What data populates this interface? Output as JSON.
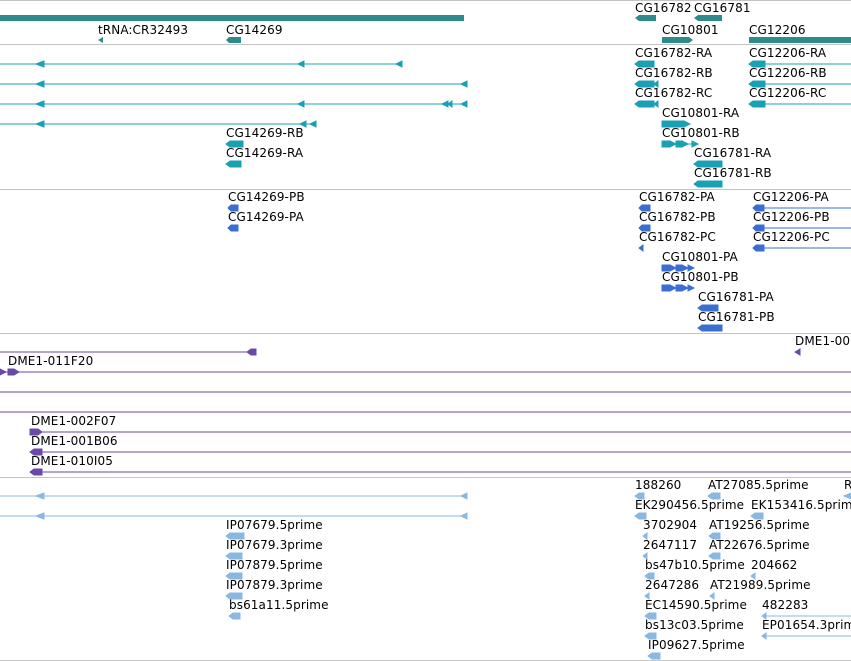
{
  "colors": {
    "gene": "#2e8b8b",
    "transcript": "#1aa0b5",
    "protein": "#3a6fcf",
    "clone": "#6a4aa8",
    "est": "#8ab8e0",
    "separator": "#c4c4c4"
  },
  "tracks": {
    "genes": {
      "labels": [
        "tRNA:CR32493",
        "CG14269",
        "CG16782",
        "CG16781",
        "CG10801",
        "CG12206"
      ]
    },
    "transcripts": {
      "labels": [
        "CG14269-RB",
        "CG14269-RA",
        "CG16782-RA",
        "CG16782-RB",
        "CG16782-RC",
        "CG10801-RA",
        "CG10801-RB",
        "CG16781-RA",
        "CG16781-RB",
        "CG12206-RA",
        "CG12206-RB",
        "CG12206-RC"
      ]
    },
    "proteins": {
      "labels": [
        "CG14269-PB",
        "CG14269-PA",
        "CG16782-PA",
        "CG16782-PB",
        "CG16782-PC",
        "CG10801-PA",
        "CG10801-PB",
        "CG16781-PA",
        "CG16781-PB",
        "CG12206-PA",
        "CG12206-PB",
        "CG12206-PC"
      ]
    },
    "clones": {
      "labels": [
        "DME1-00",
        "DME1-011F20",
        "DME1-002F07",
        "DME1-001B06",
        "DME1-010I05"
      ]
    },
    "ests": {
      "labels": [
        "IP07679.5prime",
        "IP07679.3prime",
        "IP07879.5prime",
        "IP07879.3prime",
        "bs61a11.5prime",
        "188260",
        "AT27085.5prime",
        "R",
        "EK290456.5prime",
        "EK153416.5prime",
        "3702904",
        "AT19256.5prime",
        "2647117",
        "AT22676.5prime",
        "bs47b10.5prime",
        "204662",
        "2647286",
        "AT21989.5prime",
        "EC14590.5prime",
        "482283",
        "bs13c03.5prime",
        "EP01654.3prime",
        "IP09627.5prime"
      ]
    }
  }
}
